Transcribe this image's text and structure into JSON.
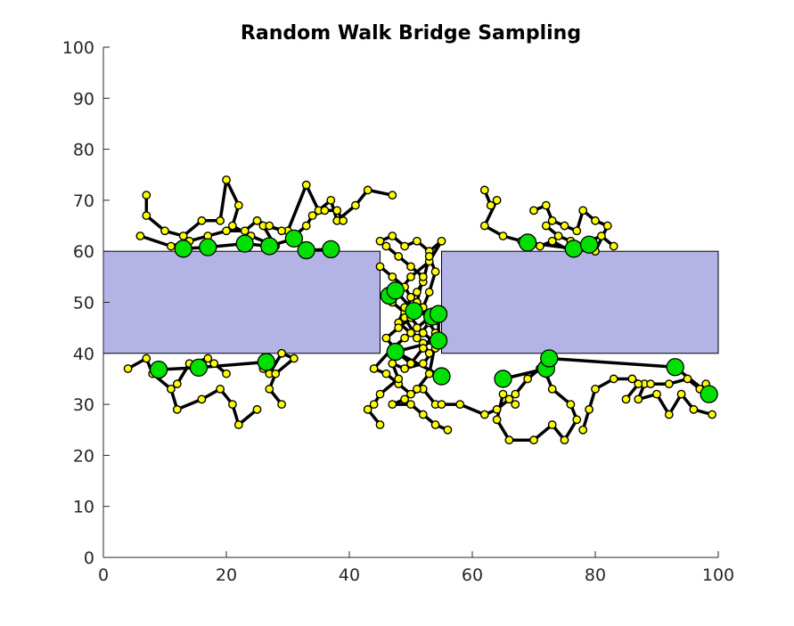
{
  "chart_data": {
    "type": "scatter",
    "title": "Random Walk Bridge Sampling",
    "xlabel": "",
    "ylabel": "",
    "xlim": [
      0,
      100
    ],
    "ylim": [
      0,
      100
    ],
    "xticks": [
      "0",
      "20",
      "40",
      "60",
      "80",
      "100"
    ],
    "yticks": [
      "0",
      "10",
      "20",
      "30",
      "40",
      "50",
      "60",
      "70",
      "80",
      "90",
      "100"
    ],
    "grid": false,
    "obstacle_color": "#b3b3e6",
    "obstacle": {
      "outer": [
        0,
        40,
        100,
        60
      ],
      "gap": [
        45,
        55
      ]
    },
    "series": [
      {
        "role": "walk",
        "color": "#000000",
        "points": [
          [
            7,
            71
          ],
          [
            7,
            67
          ],
          [
            10,
            64
          ],
          [
            13,
            63
          ],
          [
            16,
            66
          ],
          [
            19,
            66
          ],
          [
            20,
            74
          ],
          [
            22,
            69
          ],
          [
            21,
            65
          ],
          [
            24,
            63
          ],
          [
            28,
            61
          ],
          [
            26,
            65
          ],
          [
            30,
            64
          ],
          [
            33,
            73
          ],
          [
            35,
            68
          ],
          [
            37,
            70
          ],
          [
            38,
            66
          ],
          [
            41,
            69
          ],
          [
            43,
            72
          ],
          [
            47,
            71
          ]
        ]
      },
      {
        "role": "walk",
        "color": "#000000",
        "points": [
          [
            6,
            63
          ],
          [
            11,
            61
          ],
          [
            14,
            62
          ],
          [
            17,
            63
          ],
          [
            20,
            64
          ],
          [
            23,
            64
          ],
          [
            25,
            66
          ],
          [
            27,
            65
          ],
          [
            29,
            64
          ],
          [
            31,
            63
          ],
          [
            33,
            65
          ],
          [
            34,
            67
          ],
          [
            36,
            68
          ],
          [
            38,
            68
          ],
          [
            39,
            66
          ]
        ]
      },
      {
        "role": "walk",
        "color": "#000000",
        "points": [
          [
            4,
            37
          ],
          [
            7,
            39
          ],
          [
            8,
            36
          ],
          [
            11,
            33
          ],
          [
            12,
            29
          ],
          [
            16,
            31
          ],
          [
            19,
            33
          ],
          [
            21,
            30
          ],
          [
            22,
            26
          ],
          [
            25,
            29
          ]
        ]
      },
      {
        "role": "walk",
        "color": "#000000",
        "points": [
          [
            12,
            34
          ],
          [
            14,
            38
          ],
          [
            17,
            39
          ],
          [
            20,
            36
          ],
          [
            18,
            38
          ]
        ]
      },
      {
        "role": "walk",
        "color": "#000000",
        "points": [
          [
            26,
            37
          ],
          [
            27,
            36
          ],
          [
            29,
            40
          ],
          [
            31,
            39
          ],
          [
            28,
            36
          ],
          [
            27,
            33
          ],
          [
            29,
            30
          ]
        ]
      },
      {
        "role": "walk",
        "color": "#000000",
        "points": [
          [
            45,
            62
          ],
          [
            47,
            63
          ],
          [
            49,
            61
          ],
          [
            51,
            62
          ],
          [
            53,
            60
          ],
          [
            55,
            62
          ],
          [
            53,
            58
          ],
          [
            50,
            55
          ],
          [
            48,
            52
          ],
          [
            47,
            50
          ],
          [
            49,
            48
          ],
          [
            51,
            50
          ],
          [
            53,
            47
          ],
          [
            51,
            45
          ],
          [
            49,
            43
          ],
          [
            47,
            41
          ],
          [
            44,
            37
          ],
          [
            46,
            36
          ],
          [
            48,
            34
          ],
          [
            50,
            32
          ],
          [
            52,
            33
          ],
          [
            54,
            30
          ]
        ]
      },
      {
        "role": "walk",
        "color": "#000000",
        "points": [
          [
            45,
            57
          ],
          [
            47,
            55
          ],
          [
            49,
            53
          ],
          [
            50,
            51
          ],
          [
            52,
            49
          ],
          [
            53,
            52
          ],
          [
            54,
            56
          ],
          [
            53,
            59
          ],
          [
            52,
            54
          ],
          [
            51,
            52
          ],
          [
            49,
            49
          ],
          [
            48,
            46
          ],
          [
            50,
            44
          ],
          [
            52,
            42
          ],
          [
            53,
            40
          ],
          [
            54,
            41
          ],
          [
            52,
            38
          ],
          [
            49,
            37
          ],
          [
            47,
            38
          ],
          [
            48,
            35
          ],
          [
            45,
            32
          ],
          [
            44,
            30
          ],
          [
            43,
            29
          ],
          [
            45,
            26
          ]
        ]
      },
      {
        "role": "walk",
        "color": "#000000",
        "points": [
          [
            46,
            61
          ],
          [
            48,
            59
          ],
          [
            50,
            57
          ],
          [
            52,
            55
          ],
          [
            51,
            50
          ],
          [
            49,
            47
          ],
          [
            51,
            43
          ],
          [
            53,
            46
          ],
          [
            54,
            44
          ],
          [
            52,
            41
          ],
          [
            50,
            38
          ],
          [
            48,
            40
          ],
          [
            46,
            43
          ],
          [
            48,
            45
          ],
          [
            50,
            47
          ],
          [
            52,
            44
          ],
          [
            54,
            42
          ],
          [
            53,
            36
          ],
          [
            51,
            33
          ],
          [
            49,
            31
          ],
          [
            47,
            30
          ],
          [
            50,
            30
          ],
          [
            52,
            28
          ],
          [
            54,
            26
          ],
          [
            56,
            25
          ]
        ]
      },
      {
        "role": "walk",
        "color": "#000000",
        "points": [
          [
            55,
            30
          ],
          [
            58,
            30
          ],
          [
            62,
            28
          ],
          [
            64,
            29
          ],
          [
            66,
            31
          ],
          [
            67,
            32
          ],
          [
            69,
            35
          ],
          [
            71,
            37
          ],
          [
            72,
            36
          ],
          [
            73,
            33
          ],
          [
            76,
            30
          ],
          [
            77,
            27
          ],
          [
            75,
            23
          ],
          [
            73,
            26
          ],
          [
            70,
            23
          ],
          [
            66,
            23
          ],
          [
            64,
            27
          ],
          [
            65,
            32
          ],
          [
            67,
            30
          ]
        ]
      },
      {
        "role": "walk",
        "color": "#000000",
        "points": [
          [
            62,
            72
          ],
          [
            63,
            69
          ],
          [
            64,
            70
          ],
          [
            62,
            65
          ],
          [
            65,
            63
          ],
          [
            68,
            62
          ],
          [
            71,
            61
          ],
          [
            73,
            62
          ],
          [
            76,
            60
          ],
          [
            79,
            62
          ],
          [
            81,
            63
          ],
          [
            83,
            61
          ]
        ]
      },
      {
        "role": "walk",
        "color": "#000000",
        "points": [
          [
            70,
            68
          ],
          [
            72,
            69
          ],
          [
            73,
            66
          ],
          [
            75,
            65
          ],
          [
            77,
            64
          ],
          [
            78,
            68
          ],
          [
            80,
            66
          ],
          [
            82,
            65
          ],
          [
            80,
            60
          ],
          [
            78,
            61
          ],
          [
            76,
            62
          ],
          [
            74,
            63
          ],
          [
            72,
            65
          ]
        ]
      },
      {
        "role": "walk",
        "color": "#000000",
        "points": [
          [
            78,
            25
          ],
          [
            79,
            29
          ],
          [
            80,
            33
          ],
          [
            83,
            35
          ],
          [
            86,
            35
          ],
          [
            88,
            34
          ],
          [
            87,
            31
          ],
          [
            90,
            32
          ],
          [
            92,
            28
          ],
          [
            94,
            32
          ],
          [
            96,
            29
          ],
          [
            99,
            28
          ]
        ]
      },
      {
        "role": "walk",
        "color": "#000000",
        "points": [
          [
            85,
            31
          ],
          [
            87,
            34
          ],
          [
            89,
            34
          ],
          [
            92,
            34
          ],
          [
            95,
            35
          ],
          [
            97,
            33
          ],
          [
            98,
            34
          ]
        ]
      },
      {
        "role": "bridge",
        "color": "#000000",
        "points": [
          [
            13,
            60.5
          ],
          [
            17,
            60.8
          ],
          [
            23,
            61.5
          ],
          [
            27,
            61
          ],
          [
            31,
            62.5
          ],
          [
            33,
            60.2
          ],
          [
            37,
            60.4
          ]
        ]
      },
      {
        "role": "bridge",
        "color": "#000000",
        "points": [
          [
            9,
            36.8
          ],
          [
            15.5,
            37.2
          ],
          [
            26.5,
            38.3
          ]
        ]
      },
      {
        "role": "bridge",
        "color": "#000000",
        "points": [
          [
            46.5,
            51.3
          ],
          [
            47.5,
            52.3
          ],
          [
            50.5,
            48.3
          ],
          [
            53.5,
            47.2
          ],
          [
            54.5,
            47.7
          ],
          [
            54.5,
            42.5
          ],
          [
            47.5,
            40.3
          ],
          [
            55,
            35.5
          ]
        ]
      },
      {
        "role": "bridge",
        "color": "#000000",
        "points": [
          [
            65,
            35
          ],
          [
            72,
            37
          ],
          [
            72.5,
            39
          ],
          [
            93,
            37.3
          ],
          [
            98.5,
            32
          ]
        ]
      },
      {
        "role": "bridge",
        "color": "#000000",
        "points": [
          [
            69,
            61.7
          ],
          [
            76.5,
            60.5
          ],
          [
            79,
            61.3
          ]
        ]
      }
    ],
    "small_marker_color": "#ffff00",
    "large_marker_color": "#00e000",
    "nodes": [
      [
        13,
        60.5
      ],
      [
        17,
        60.8
      ],
      [
        23,
        61.5
      ],
      [
        27,
        61
      ],
      [
        31,
        62.5
      ],
      [
        33,
        60.2
      ],
      [
        37,
        60.4
      ],
      [
        9,
        36.8
      ],
      [
        15.5,
        37.2
      ],
      [
        26.5,
        38.3
      ],
      [
        46.5,
        51.3
      ],
      [
        47.5,
        52.3
      ],
      [
        50.5,
        48.3
      ],
      [
        53.5,
        47.2
      ],
      [
        54.5,
        47.7
      ],
      [
        54.5,
        42.5
      ],
      [
        47.5,
        40.3
      ],
      [
        55,
        35.5
      ],
      [
        65,
        35
      ],
      [
        72,
        37
      ],
      [
        72.5,
        39
      ],
      [
        93,
        37.3
      ],
      [
        98.5,
        32
      ],
      [
        69,
        61.7
      ],
      [
        76.5,
        60.5
      ],
      [
        79,
        61.3
      ]
    ]
  }
}
